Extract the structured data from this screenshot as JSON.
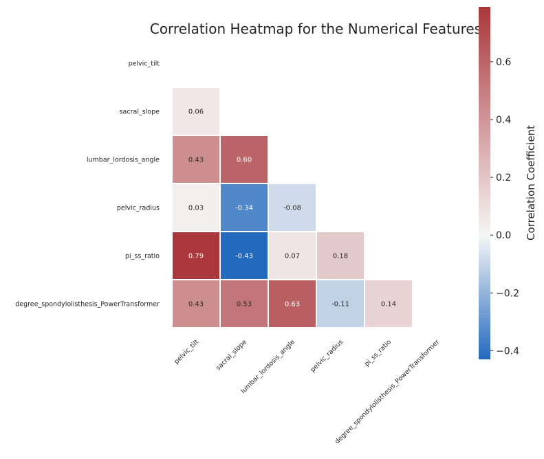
{
  "chart_data": {
    "type": "heatmap",
    "title": "Correlation Heatmap for the Numerical Features",
    "rows": [
      "pelvic_tilt",
      "sacral_slope",
      "lumbar_lordosis_angle",
      "pelvic_radius",
      "pi_ss_ratio",
      "degree_spondylolisthesis_PowerTransformer"
    ],
    "cols": [
      "pelvic_tilt",
      "sacral_slope",
      "lumbar_lordosis_angle",
      "pelvic_radius",
      "pi_ss_ratio",
      "degree_spondylolisthesis_PowerTransformer"
    ],
    "mask": "upper-triangle-including-diagonal",
    "values": [
      [
        null,
        null,
        null,
        null,
        null,
        null
      ],
      [
        0.06,
        null,
        null,
        null,
        null,
        null
      ],
      [
        0.43,
        0.6,
        null,
        null,
        null,
        null
      ],
      [
        0.03,
        -0.34,
        -0.08,
        null,
        null,
        null
      ],
      [
        0.79,
        -0.43,
        0.07,
        0.18,
        null,
        null
      ],
      [
        0.43,
        0.53,
        0.63,
        -0.11,
        0.14,
        null
      ]
    ],
    "value_format": "0.00",
    "colorbar": {
      "label": "Correlation Coefficient",
      "range": [
        -0.43,
        0.79
      ],
      "ticks": [
        -0.4,
        -0.2,
        0.0,
        0.2,
        0.4,
        0.6
      ],
      "tick_labels": [
        "−0.4",
        "−0.2",
        "0.0",
        "0.2",
        "0.4",
        "0.6"
      ],
      "colormap": "vlag"
    },
    "colors": {
      "negative": "#2369bd",
      "mid": "#f7f6f6",
      "positive": "#a9373b",
      "text": "#262626"
    }
  }
}
